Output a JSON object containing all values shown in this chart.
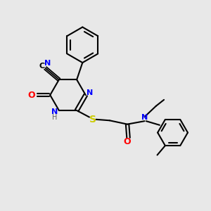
{
  "bg_color": "#e8e8e8",
  "bond_color": "#000000",
  "N_color": "#0000ff",
  "O_color": "#ff0000",
  "S_color": "#cccc00",
  "H_color": "#606060",
  "figsize": [
    3.0,
    3.0
  ],
  "dpi": 100,
  "xlim": [
    0,
    10
  ],
  "ylim": [
    0,
    10
  ]
}
